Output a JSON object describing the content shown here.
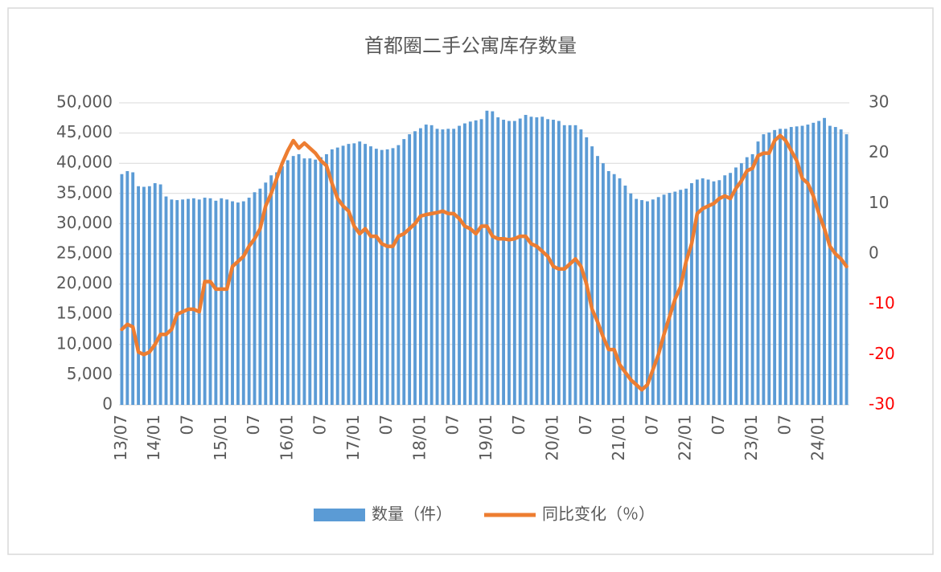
{
  "chart_data": {
    "type": "bar-line",
    "title": "首都圈二手公寓库存数量",
    "categories": [
      "13/07",
      null,
      null,
      null,
      null,
      null,
      "14/01",
      null,
      null,
      null,
      null,
      null,
      "07",
      null,
      null,
      null,
      null,
      null,
      "15/01",
      null,
      null,
      null,
      null,
      null,
      "07",
      null,
      null,
      null,
      null,
      null,
      "16/01",
      null,
      null,
      null,
      null,
      null,
      "07",
      null,
      null,
      null,
      null,
      null,
      "17/01",
      null,
      null,
      null,
      null,
      null,
      "07",
      null,
      null,
      null,
      null,
      null,
      "18/01",
      null,
      null,
      null,
      null,
      null,
      "07",
      null,
      null,
      null,
      null,
      null,
      "19/01",
      null,
      null,
      null,
      null,
      null,
      "07",
      null,
      null,
      null,
      null,
      null,
      "20/01",
      null,
      null,
      null,
      null,
      null,
      "07",
      null,
      null,
      null,
      null,
      null,
      "21/01",
      null,
      null,
      null,
      null,
      null,
      "07",
      null,
      null,
      null,
      null,
      null,
      "22/01",
      null,
      null,
      null,
      null,
      null,
      "07",
      null,
      null,
      null,
      null,
      null,
      "23/01",
      null,
      null,
      null,
      null,
      null,
      "07",
      null,
      null,
      null,
      null,
      null,
      "24/01",
      null,
      null,
      null,
      null,
      null
    ],
    "series": [
      {
        "name": "数量（件）",
        "type": "bar",
        "color": "#5b9bd5",
        "values": [
          38200,
          38700,
          38500,
          36200,
          36100,
          36200,
          36700,
          36500,
          34500,
          34000,
          33900,
          34000,
          34100,
          34200,
          34000,
          34300,
          34200,
          33800,
          34200,
          34000,
          33700,
          33500,
          33700,
          34300,
          35200,
          35800,
          36800,
          38000,
          38500,
          39500,
          40500,
          41200,
          41500,
          40800,
          40800,
          40600,
          41000,
          41500,
          42300,
          42600,
          42900,
          43200,
          43300,
          43600,
          43200,
          42800,
          42400,
          42200,
          42300,
          42500,
          43000,
          44000,
          44800,
          45300,
          45800,
          46400,
          46300,
          45700,
          45600,
          45700,
          45700,
          46200,
          46600,
          46900,
          47100,
          47300,
          48700,
          48600,
          47600,
          47200,
          47000,
          47000,
          47400,
          48000,
          47700,
          47600,
          47700,
          47300,
          47200,
          47000,
          46300,
          46300,
          46300,
          45600,
          44300,
          42800,
          41200,
          40000,
          38700,
          38200,
          37500,
          36300,
          35000,
          34100,
          33900,
          33700,
          34000,
          34400,
          34800,
          35100,
          35300,
          35600,
          35800,
          36700,
          37300,
          37500,
          37300,
          37000,
          37200,
          38000,
          38400,
          39300,
          40000,
          41000,
          41500,
          43600,
          44800,
          45100,
          45500,
          45700,
          45700,
          46000,
          46100,
          46200,
          46400,
          46700,
          47000,
          47500,
          46200,
          46000,
          45600,
          44800
        ]
      },
      {
        "name": "同比变化（％）",
        "type": "line",
        "axis": "y2",
        "color": "#ed7d31",
        "values": [
          -15,
          -14,
          -14.5,
          -19.5,
          -20,
          -19.5,
          -18,
          -16,
          -16,
          -15,
          -12,
          -11.5,
          -11,
          -11,
          -11.5,
          -5.5,
          -5.5,
          -7,
          -7,
          -7,
          -2.5,
          -1.5,
          -0.5,
          1.5,
          3,
          5,
          9.5,
          12,
          15,
          18,
          20.5,
          22.5,
          21,
          22,
          21,
          20,
          18.5,
          17.5,
          14,
          11,
          9.5,
          8.5,
          5.5,
          4,
          5,
          3.5,
          3.5,
          2,
          1.5,
          1.5,
          3.5,
          4,
          5,
          6,
          7.5,
          7.8,
          8,
          8.2,
          8.5,
          8,
          8,
          7,
          5.5,
          5,
          4,
          5.5,
          5.5,
          3.5,
          3,
          3,
          2.8,
          3,
          3.5,
          3.5,
          2,
          1.5,
          0.5,
          -0.5,
          -2.5,
          -3,
          -3,
          -2,
          -1,
          -2.5,
          -6,
          -11,
          -13.5,
          -16.5,
          -19,
          -19,
          -22,
          -23.5,
          -25,
          -26,
          -27,
          -26,
          -23,
          -20,
          -16,
          -12.5,
          -9,
          -6.5,
          -1.5,
          2,
          8,
          9,
          9.5,
          10,
          11,
          11.5,
          11,
          13,
          14.5,
          16.5,
          17,
          19.5,
          20,
          20,
          22.5,
          23.5,
          22.5,
          20.5,
          18.5,
          15,
          14,
          11.5,
          8,
          5,
          1.5,
          0,
          -1,
          -2.5
        ]
      }
    ],
    "ylim": [
      0,
      50000
    ],
    "yticks": [
      0,
      {
        "value": 5000,
        "label": "5,000"
      },
      {
        "value": 10000,
        "label": "10,000"
      },
      {
        "value": 15000,
        "label": "15,000"
      },
      {
        "value": 20000,
        "label": "20,000"
      },
      {
        "value": 25000,
        "label": "25,000"
      },
      {
        "value": 30000,
        "label": "30,000"
      },
      {
        "value": 35000,
        "label": "35,000"
      },
      {
        "value": 40000,
        "label": "40,000"
      },
      {
        "value": 45000,
        "label": "45,000"
      },
      {
        "value": 50000,
        "label": "50,000"
      }
    ],
    "y2lim": [
      -30,
      30
    ],
    "y2ticks": [
      -30,
      -20,
      -10,
      0,
      10,
      20,
      30
    ],
    "y2_negative_tick_color": "#ff0000",
    "grid": true,
    "legend": "bottom"
  }
}
